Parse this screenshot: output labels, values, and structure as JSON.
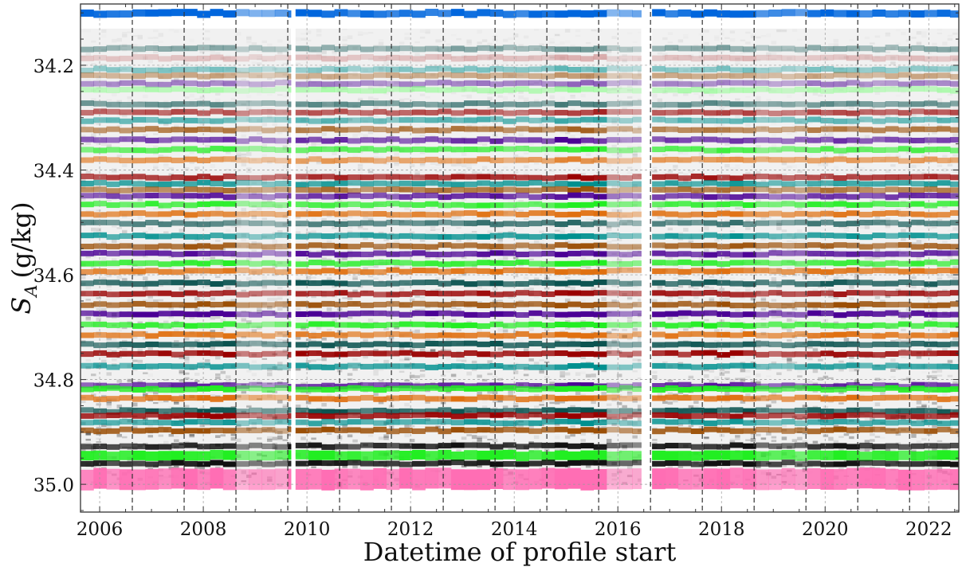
{
  "chart_data": {
    "type": "scatter",
    "title": "",
    "xlabel": "Datetime of profile start",
    "ylabel": {
      "symbol": "S",
      "subscript": "A",
      "unit": "(g/kg)"
    },
    "xlim": [
      2005.63,
      2022.58
    ],
    "ylim": [
      35.053,
      34.083
    ],
    "y_inverted": true,
    "grid": true,
    "xticks": [
      2006,
      2008,
      2010,
      2012,
      2014,
      2016,
      2018,
      2020,
      2022
    ],
    "xtick_labels": [
      "2006",
      "2008",
      "2010",
      "2012",
      "2014",
      "2016",
      "2018",
      "2020",
      "2022"
    ],
    "yticks": [
      34.2,
      34.4,
      34.6,
      34.8,
      35.0
    ],
    "ytick_labels": [
      "34.2",
      "34.4",
      "34.6",
      "34.8",
      "35.0"
    ],
    "period_boundaries": [
      2006.63,
      2007.63,
      2008.63,
      2009.63,
      2010.63,
      2011.63,
      2012.63,
      2013.63,
      2014.63,
      2015.63,
      2016.63,
      2017.63,
      2018.63,
      2019.63,
      2020.63,
      2021.63
    ],
    "data_coverage": [
      [
        2005.63,
        2009.69
      ],
      [
        2009.78,
        2016.45
      ],
      [
        2016.66,
        2022.58
      ]
    ],
    "colors": {
      "blue": "#0066dd",
      "dark_teal": "#0b5350",
      "dark_red": "#990000",
      "rose": "#c06060",
      "teal": "#00908f",
      "brown": "#9b4f06",
      "purple": "#4b0095",
      "green": "#22ee22",
      "light_green": "#80ff80",
      "orange": "#e07010",
      "black": "#111111",
      "pink": "#ff6eb4",
      "noise": "#000000"
    },
    "clusters": [
      {
        "salinity": 34.101,
        "color": "blue",
        "strength": 1.0
      },
      {
        "salinity": 34.168,
        "color": "dark_teal",
        "strength": 0.45
      },
      {
        "salinity": 34.186,
        "color": "rose",
        "strength": 0.35
      },
      {
        "salinity": 34.208,
        "color": "teal",
        "strength": 0.45
      },
      {
        "salinity": 34.22,
        "color": "brown",
        "strength": 0.45
      },
      {
        "salinity": 34.235,
        "color": "purple",
        "strength": 0.45
      },
      {
        "salinity": 34.247,
        "color": "light_green",
        "strength": 0.55
      },
      {
        "salinity": 34.274,
        "color": "dark_teal",
        "strength": 0.6
      },
      {
        "salinity": 34.29,
        "color": "dark_red",
        "strength": 0.65
      },
      {
        "salinity": 34.305,
        "color": "teal",
        "strength": 0.6
      },
      {
        "salinity": 34.323,
        "color": "brown",
        "strength": 0.7
      },
      {
        "salinity": 34.343,
        "color": "purple",
        "strength": 0.75
      },
      {
        "salinity": 34.361,
        "color": "green",
        "strength": 0.75
      },
      {
        "salinity": 34.381,
        "color": "orange",
        "strength": 0.65
      },
      {
        "salinity": 34.414,
        "color": "dark_red",
        "strength": 0.8
      },
      {
        "salinity": 34.426,
        "color": "teal",
        "strength": 0.8
      },
      {
        "salinity": 34.438,
        "color": "brown",
        "strength": 0.75
      },
      {
        "salinity": 34.45,
        "color": "purple",
        "strength": 0.8
      },
      {
        "salinity": 34.466,
        "color": "green",
        "strength": 0.85
      },
      {
        "salinity": 34.484,
        "color": "orange",
        "strength": 0.85
      },
      {
        "salinity": 34.502,
        "color": "dark_teal",
        "strength": 0.7
      },
      {
        "salinity": 34.526,
        "color": "teal",
        "strength": 0.85
      },
      {
        "salinity": 34.545,
        "color": "brown",
        "strength": 0.85
      },
      {
        "salinity": 34.56,
        "color": "purple",
        "strength": 0.85
      },
      {
        "salinity": 34.578,
        "color": "green",
        "strength": 0.85
      },
      {
        "salinity": 34.593,
        "color": "orange",
        "strength": 0.9
      },
      {
        "salinity": 34.616,
        "color": "dark_teal",
        "strength": 0.9
      },
      {
        "salinity": 34.636,
        "color": "dark_red",
        "strength": 0.85
      },
      {
        "salinity": 34.657,
        "color": "brown",
        "strength": 0.9
      },
      {
        "salinity": 34.675,
        "color": "purple",
        "strength": 0.95
      },
      {
        "salinity": 34.696,
        "color": "green",
        "strength": 0.9
      },
      {
        "salinity": 34.715,
        "color": "orange",
        "strength": 0.9
      },
      {
        "salinity": 34.733,
        "color": "dark_teal",
        "strength": 0.9
      },
      {
        "salinity": 34.751,
        "color": "dark_red",
        "strength": 0.9
      },
      {
        "salinity": 34.775,
        "color": "teal",
        "strength": 0.8
      },
      {
        "salinity": 34.812,
        "color": "purple",
        "strength": 0.8
      },
      {
        "salinity": 34.818,
        "color": "green",
        "strength": 0.95
      },
      {
        "salinity": 34.836,
        "color": "orange",
        "strength": 0.9
      },
      {
        "salinity": 34.86,
        "color": "dark_teal",
        "strength": 0.9
      },
      {
        "salinity": 34.869,
        "color": "dark_red",
        "strength": 0.9
      },
      {
        "salinity": 34.882,
        "color": "teal",
        "strength": 0.8
      },
      {
        "salinity": 34.897,
        "color": "brown",
        "strength": 0.9
      },
      {
        "salinity": 34.927,
        "color": "black",
        "strength": 0.9
      },
      {
        "salinity": 34.945,
        "color": "green",
        "strength": 1.0
      },
      {
        "salinity": 34.96,
        "color": "black",
        "strength": 0.95
      },
      {
        "salinity": 34.99,
        "color": "pink",
        "strength": 1.0
      }
    ]
  }
}
